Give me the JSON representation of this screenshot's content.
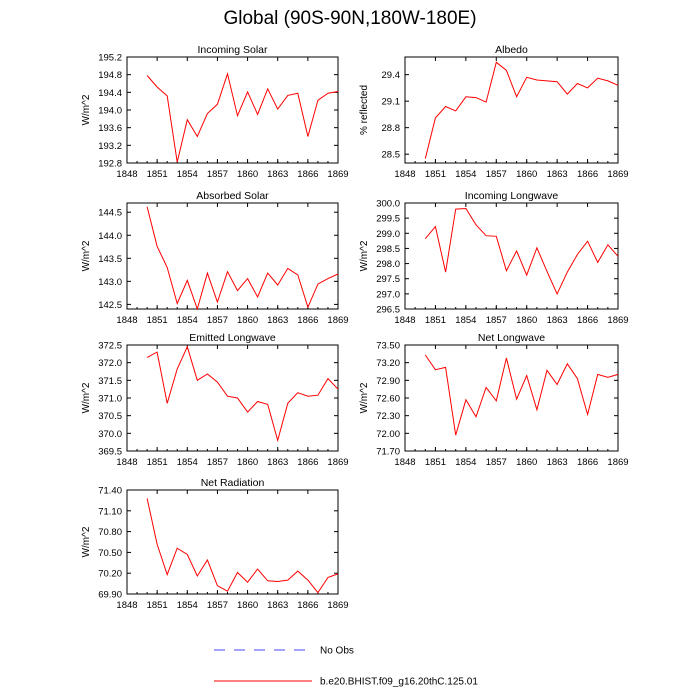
{
  "title": "Global (90S-90N,180W-180E)",
  "colors": {
    "model": "#ff0000",
    "obs": "#4a4aff",
    "axis": "#000000"
  },
  "legend": [
    {
      "label": "No Obs",
      "style": "dashed",
      "color": "#4a4aff"
    },
    {
      "label": "b.e20.BHIST.f09_g16.20thC.125.01",
      "style": "solid",
      "color": "#ff0000"
    }
  ],
  "chart_data": [
    {
      "type": "line",
      "title": "Incoming Solar",
      "ylabel": "W/m^2",
      "xlim": [
        1848,
        1869
      ],
      "xticks": [
        "1848",
        "1851",
        "1854",
        "1857",
        "1860",
        "1863",
        "1866",
        "1869"
      ],
      "ylim": [
        192.8,
        195.2
      ],
      "yticks": [
        "192.8",
        "193.2",
        "193.6",
        "194.0",
        "194.4",
        "194.8",
        "195.2"
      ],
      "x": [
        1850,
        1851,
        1852,
        1853,
        1854,
        1855,
        1856,
        1857,
        1858,
        1859,
        1860,
        1861,
        1862,
        1863,
        1864,
        1865,
        1866,
        1867,
        1868,
        1869
      ],
      "series": [
        {
          "name": "b.e20.BHIST.f09_g16.20thC.125.01",
          "values": [
            194.78,
            194.52,
            194.32,
            192.82,
            193.78,
            193.4,
            193.92,
            194.13,
            194.82,
            193.87,
            194.41,
            193.9,
            194.48,
            194.02,
            194.33,
            194.38,
            193.4,
            194.22,
            194.38,
            194.42
          ]
        }
      ]
    },
    {
      "type": "line",
      "title": "Albedo",
      "ylabel": "% reflected",
      "xlim": [
        1848,
        1869
      ],
      "xticks": [
        "1848",
        "1851",
        "1854",
        "1857",
        "1860",
        "1863",
        "1866",
        "1869"
      ],
      "ylim": [
        28.4,
        29.6
      ],
      "yticks": [
        "28.5",
        "28.8",
        "29.1",
        "29.4"
      ],
      "x": [
        1850,
        1851,
        1852,
        1853,
        1854,
        1855,
        1856,
        1857,
        1858,
        1859,
        1860,
        1861,
        1862,
        1863,
        1864,
        1865,
        1866,
        1867,
        1868,
        1869
      ],
      "series": [
        {
          "name": "b.e20.BHIST.f09_g16.20thC.125.01",
          "values": [
            28.45,
            28.91,
            29.04,
            28.99,
            29.15,
            29.14,
            29.09,
            29.54,
            29.45,
            29.15,
            29.37,
            29.34,
            29.33,
            29.32,
            29.18,
            29.3,
            29.25,
            29.36,
            29.33,
            29.28
          ]
        }
      ]
    },
    {
      "type": "line",
      "title": "Absorbed Solar",
      "ylabel": "W/m^2",
      "xlim": [
        1848,
        1869
      ],
      "xticks": [
        "1848",
        "1851",
        "1854",
        "1857",
        "1860",
        "1863",
        "1866",
        "1869"
      ],
      "ylim": [
        142.4,
        144.7
      ],
      "yticks": [
        "142.5",
        "143.0",
        "143.5",
        "144.0",
        "144.5"
      ],
      "x": [
        1850,
        1851,
        1852,
        1853,
        1854,
        1855,
        1856,
        1857,
        1858,
        1859,
        1860,
        1861,
        1862,
        1863,
        1864,
        1865,
        1866,
        1867,
        1868,
        1869
      ],
      "series": [
        {
          "name": "b.e20.BHIST.f09_g16.20thC.125.01",
          "values": [
            144.62,
            143.76,
            143.3,
            142.52,
            143.02,
            142.4,
            143.18,
            142.55,
            143.21,
            142.8,
            143.06,
            142.66,
            143.18,
            142.92,
            143.28,
            143.14,
            142.44,
            142.94,
            143.06,
            143.16
          ]
        }
      ]
    },
    {
      "type": "line",
      "title": "Incoming Longwave",
      "ylabel": "W/m^2",
      "xlim": [
        1848,
        1869
      ],
      "xticks": [
        "1848",
        "1851",
        "1854",
        "1857",
        "1860",
        "1863",
        "1866",
        "1869"
      ],
      "ylim": [
        296.5,
        300.0
      ],
      "yticks": [
        "296.5",
        "297.0",
        "297.5",
        "298.0",
        "298.5",
        "299.0",
        "299.5",
        "300.0"
      ],
      "x": [
        1850,
        1851,
        1852,
        1853,
        1854,
        1855,
        1856,
        1857,
        1858,
        1859,
        1860,
        1861,
        1862,
        1863,
        1864,
        1865,
        1866,
        1867,
        1868,
        1869
      ],
      "series": [
        {
          "name": "b.e20.BHIST.f09_g16.20thC.125.01",
          "values": [
            298.82,
            299.22,
            297.72,
            299.8,
            299.82,
            299.28,
            298.92,
            298.9,
            297.76,
            298.42,
            297.62,
            298.52,
            297.74,
            297.0,
            297.72,
            298.3,
            298.74,
            298.04,
            298.62,
            298.24
          ]
        }
      ]
    },
    {
      "type": "line",
      "title": "Emitted Longwave",
      "ylabel": "W/m^2",
      "xlim": [
        1848,
        1869
      ],
      "xticks": [
        "1848",
        "1851",
        "1854",
        "1857",
        "1860",
        "1863",
        "1866",
        "1869"
      ],
      "ylim": [
        369.5,
        372.5
      ],
      "yticks": [
        "369.5",
        "370.0",
        "370.5",
        "371.0",
        "371.5",
        "372.0",
        "372.5"
      ],
      "x": [
        1850,
        1851,
        1852,
        1853,
        1854,
        1855,
        1856,
        1857,
        1858,
        1859,
        1860,
        1861,
        1862,
        1863,
        1864,
        1865,
        1866,
        1867,
        1868,
        1869
      ],
      "series": [
        {
          "name": "b.e20.BHIST.f09_g16.20thC.125.01",
          "values": [
            372.15,
            372.3,
            370.85,
            371.82,
            372.45,
            371.5,
            371.68,
            371.45,
            371.05,
            371.0,
            370.6,
            370.9,
            370.82,
            369.8,
            370.85,
            371.15,
            371.05,
            371.08,
            371.55,
            371.25
          ]
        }
      ]
    },
    {
      "type": "line",
      "title": "Net Longwave",
      "ylabel": "W/m^2",
      "xlim": [
        1848,
        1869
      ],
      "xticks": [
        "1848",
        "1851",
        "1854",
        "1857",
        "1860",
        "1863",
        "1866",
        "1869"
      ],
      "ylim": [
        71.7,
        73.5
      ],
      "yticks": [
        "71.70",
        "72.00",
        "72.30",
        "72.60",
        "72.90",
        "73.20",
        "73.50"
      ],
      "x": [
        1850,
        1851,
        1852,
        1853,
        1854,
        1855,
        1856,
        1857,
        1858,
        1859,
        1860,
        1861,
        1862,
        1863,
        1864,
        1865,
        1866,
        1867,
        1868,
        1869
      ],
      "series": [
        {
          "name": "b.e20.BHIST.f09_g16.20thC.125.01",
          "values": [
            73.33,
            73.08,
            73.12,
            71.97,
            72.57,
            72.28,
            72.78,
            72.55,
            73.28,
            72.58,
            72.98,
            72.4,
            73.07,
            72.83,
            73.18,
            72.93,
            72.32,
            73.0,
            72.95,
            73.0
          ]
        }
      ]
    },
    {
      "type": "line",
      "title": "Net Radiation",
      "ylabel": "W/m^2",
      "xlim": [
        1848,
        1869
      ],
      "xticks": [
        "1848",
        "1851",
        "1854",
        "1857",
        "1860",
        "1863",
        "1866",
        "1869"
      ],
      "ylim": [
        69.9,
        71.4
      ],
      "yticks": [
        "69.90",
        "70.20",
        "70.50",
        "70.80",
        "71.10",
        "71.40"
      ],
      "x": [
        1850,
        1851,
        1852,
        1853,
        1854,
        1855,
        1856,
        1857,
        1858,
        1859,
        1860,
        1861,
        1862,
        1863,
        1864,
        1865,
        1866,
        1867,
        1868,
        1869
      ],
      "series": [
        {
          "name": "b.e20.BHIST.f09_g16.20thC.125.01",
          "values": [
            71.28,
            70.62,
            70.18,
            70.56,
            70.47,
            70.16,
            70.39,
            70.02,
            69.94,
            70.21,
            70.07,
            70.26,
            70.09,
            70.08,
            70.1,
            70.23,
            70.1,
            69.92,
            70.14,
            70.19
          ]
        }
      ]
    }
  ]
}
